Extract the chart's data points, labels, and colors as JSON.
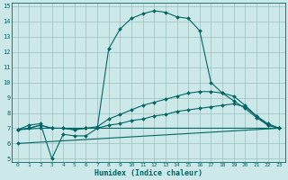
{
  "xlabel": "Humidex (Indice chaleur)",
  "xlim": [
    -0.5,
    23.5
  ],
  "ylim": [
    4.8,
    15.2
  ],
  "xticks": [
    0,
    1,
    2,
    3,
    4,
    5,
    6,
    7,
    8,
    9,
    10,
    11,
    12,
    13,
    14,
    15,
    16,
    17,
    18,
    19,
    20,
    21,
    22,
    23
  ],
  "yticks": [
    5,
    6,
    7,
    8,
    9,
    10,
    11,
    12,
    13,
    14,
    15
  ],
  "bg_color": "#cce8e8",
  "grid_color": "#9bbfbf",
  "line_color": "#006666",
  "line1_x": [
    0,
    1,
    2,
    3,
    4,
    5,
    6,
    7,
    8,
    9,
    10,
    11,
    12,
    13,
    14,
    15,
    16,
    17,
    18,
    19,
    20,
    21,
    22,
    23
  ],
  "line1_y": [
    6.9,
    7.2,
    7.3,
    5.0,
    6.6,
    6.5,
    6.5,
    7.0,
    12.2,
    13.5,
    14.2,
    14.5,
    14.7,
    14.6,
    14.3,
    14.2,
    13.4,
    10.0,
    9.3,
    8.8,
    8.3,
    7.7,
    7.2,
    7.0
  ],
  "line2_x": [
    0,
    1,
    2,
    3,
    4,
    5,
    6,
    7,
    8,
    9,
    10,
    11,
    12,
    13,
    14,
    15,
    16,
    17,
    18,
    19,
    20,
    21,
    22,
    23
  ],
  "line2_y": [
    6.9,
    7.0,
    7.2,
    7.0,
    7.0,
    6.9,
    7.0,
    7.0,
    7.2,
    7.3,
    7.5,
    7.6,
    7.8,
    7.9,
    8.1,
    8.2,
    8.3,
    8.4,
    8.5,
    8.6,
    8.4,
    7.8,
    7.3,
    7.0
  ],
  "line3_x": [
    0,
    1,
    2,
    3,
    4,
    5,
    6,
    7,
    8,
    9,
    10,
    11,
    12,
    13,
    14,
    15,
    16,
    17,
    18,
    19,
    20,
    21,
    22,
    23
  ],
  "line3_y": [
    6.9,
    7.0,
    7.2,
    7.0,
    7.0,
    6.9,
    7.0,
    7.1,
    7.6,
    7.9,
    8.2,
    8.5,
    8.7,
    8.9,
    9.1,
    9.3,
    9.4,
    9.4,
    9.3,
    9.1,
    8.5,
    7.8,
    7.2,
    7.0
  ],
  "line4_x": [
    0,
    2,
    23
  ],
  "line4_y": [
    6.9,
    7.0,
    7.0
  ],
  "line5_x": [
    0,
    23
  ],
  "line5_y": [
    6.0,
    7.0
  ]
}
